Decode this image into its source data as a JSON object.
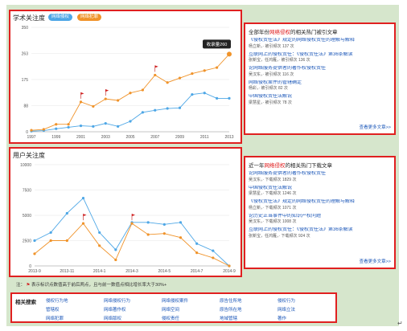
{
  "academic": {
    "title": "学术关注度",
    "tabs": [
      "网络侵权",
      "网络犯罪"
    ],
    "tooltip": "收录量260",
    "chart_data": {
      "type": "line",
      "x": [
        1997,
        1998,
        1999,
        2000,
        2001,
        2002,
        2003,
        2004,
        2005,
        2006,
        2007,
        2008,
        2009,
        2010,
        2011,
        2012,
        2013
      ],
      "xticks": [
        "1997",
        "1999",
        "2001",
        "2003",
        "2005",
        "2007",
        "2009",
        "2011",
        "2013"
      ],
      "yticks": [
        "0",
        "88",
        "175",
        "263",
        "350"
      ],
      "ylim": [
        0,
        350
      ],
      "series": [
        {
          "name": "网络侵权",
          "color": "#4ea7e6",
          "values": [
            2,
            4,
            10,
            15,
            20,
            18,
            28,
            18,
            35,
            65,
            72,
            78,
            80,
            125,
            130,
            112,
            112
          ]
        },
        {
          "name": "网络犯罪",
          "color": "#f0932a",
          "values": [
            5,
            8,
            25,
            25,
            100,
            85,
            110,
            105,
            130,
            140,
            190,
            165,
            180,
            195,
            205,
            215,
            260
          ]
        }
      ],
      "flags_at": [
        4,
        6,
        10
      ]
    }
  },
  "user": {
    "title": "用户关注度",
    "chart_data": {
      "type": "line",
      "x": [
        "2013-9",
        "2013-10",
        "2013-11",
        "2013-12",
        "2014-1",
        "2014-2",
        "2014-3",
        "2014-4",
        "2014-5",
        "2014-6",
        "2014-7",
        "2014-8",
        "2014-9"
      ],
      "xticks": [
        "2013-9",
        "2013-11",
        "2014-1",
        "2014-3",
        "2014-5",
        "2014-7",
        "2014-9"
      ],
      "yticks": [
        "0",
        "2500",
        "5000",
        "7500",
        "10000"
      ],
      "ylim": [
        0,
        10000
      ],
      "series": [
        {
          "name": "网络侵权",
          "color": "#4ea7e6",
          "values": [
            2500,
            3300,
            5200,
            6700,
            3300,
            1600,
            4300,
            4300,
            4100,
            4300,
            2200,
            1500,
            0
          ]
        },
        {
          "name": "网络犯罪",
          "color": "#f0932a",
          "values": [
            1200,
            2500,
            2500,
            4200,
            2000,
            600,
            4200,
            3100,
            3200,
            2800,
            1300,
            800,
            0
          ]
        }
      ],
      "flags_at": [
        3,
        6
      ]
    }
  },
  "cite": {
    "head_pre": "全部年份",
    "head_hl": "网络侵权",
    "head_post": "的相关热门被引文章",
    "entries": [
      {
        "title": "《侵权责任法》规定的网络侵权责任的理解与解释",
        "meta": "杨立新，· 被引频次 137 次"
      },
      {
        "title": "互联网上的侵权责任：《侵权责任法》第36条解读",
        "meta": "张新宝，任鸿雁，· 被引频次 136 次"
      },
      {
        "title": "论网络服务提供者的著作权侵权责任",
        "meta": "吴汉东，· 被引频次 116 次"
      },
      {
        "title": "网络侵权案件的管辖确定",
        "meta": "杨彩，· 被引频次 82 次"
      },
      {
        "title": "中国侵权责任法解说",
        "meta": "梁慧星，· 被引频次 78 次"
      }
    ],
    "more": "查看更多文章>>"
  },
  "downloads": {
    "head_pre": "近一年",
    "head_hl": "网络侵权",
    "head_post": "的相关热门下载文章",
    "entries": [
      {
        "title": "论网络服务提供者的著作权侵权责任",
        "meta": "吴汉东，· 下载频次 1829 次"
      },
      {
        "title": "中国侵权责任法解说",
        "meta": "梁慧星，· 下载频次 1246 次"
      },
      {
        "title": "《侵权责任法》规定的网络侵权责任的理解与解释",
        "meta": "杨立新，· 下载频次 1071 次"
      },
      {
        "title": "论历史正当事件中的知识产权问题",
        "meta": "吴汉东，· 下载频次 1008 次"
      },
      {
        "title": "互联网上的侵权责任：《侵权责任法》第36条解读",
        "meta": "张新宝，任鸿雁，· 下载频次 924 次"
      }
    ],
    "more": "查看更多文章>>"
  },
  "note": {
    "prefix": "注：",
    "flag": "⚑",
    "text": "表示标识点数值高于前后两点，且与前一数值点相比增长率大于30%+"
  },
  "search": {
    "label": "相关搜索",
    "items": [
      "侵权行为地",
      "网络侵权行为",
      "网络侵权案件",
      "原告住所地",
      "侵权行为",
      "管辖权",
      "网络著作权",
      "网络空间",
      "原告所在地",
      "网络立法",
      "网络犯罪",
      "网络版权",
      "侵权责任",
      "地域管辖",
      "著作"
    ]
  },
  "cursor": "↵"
}
